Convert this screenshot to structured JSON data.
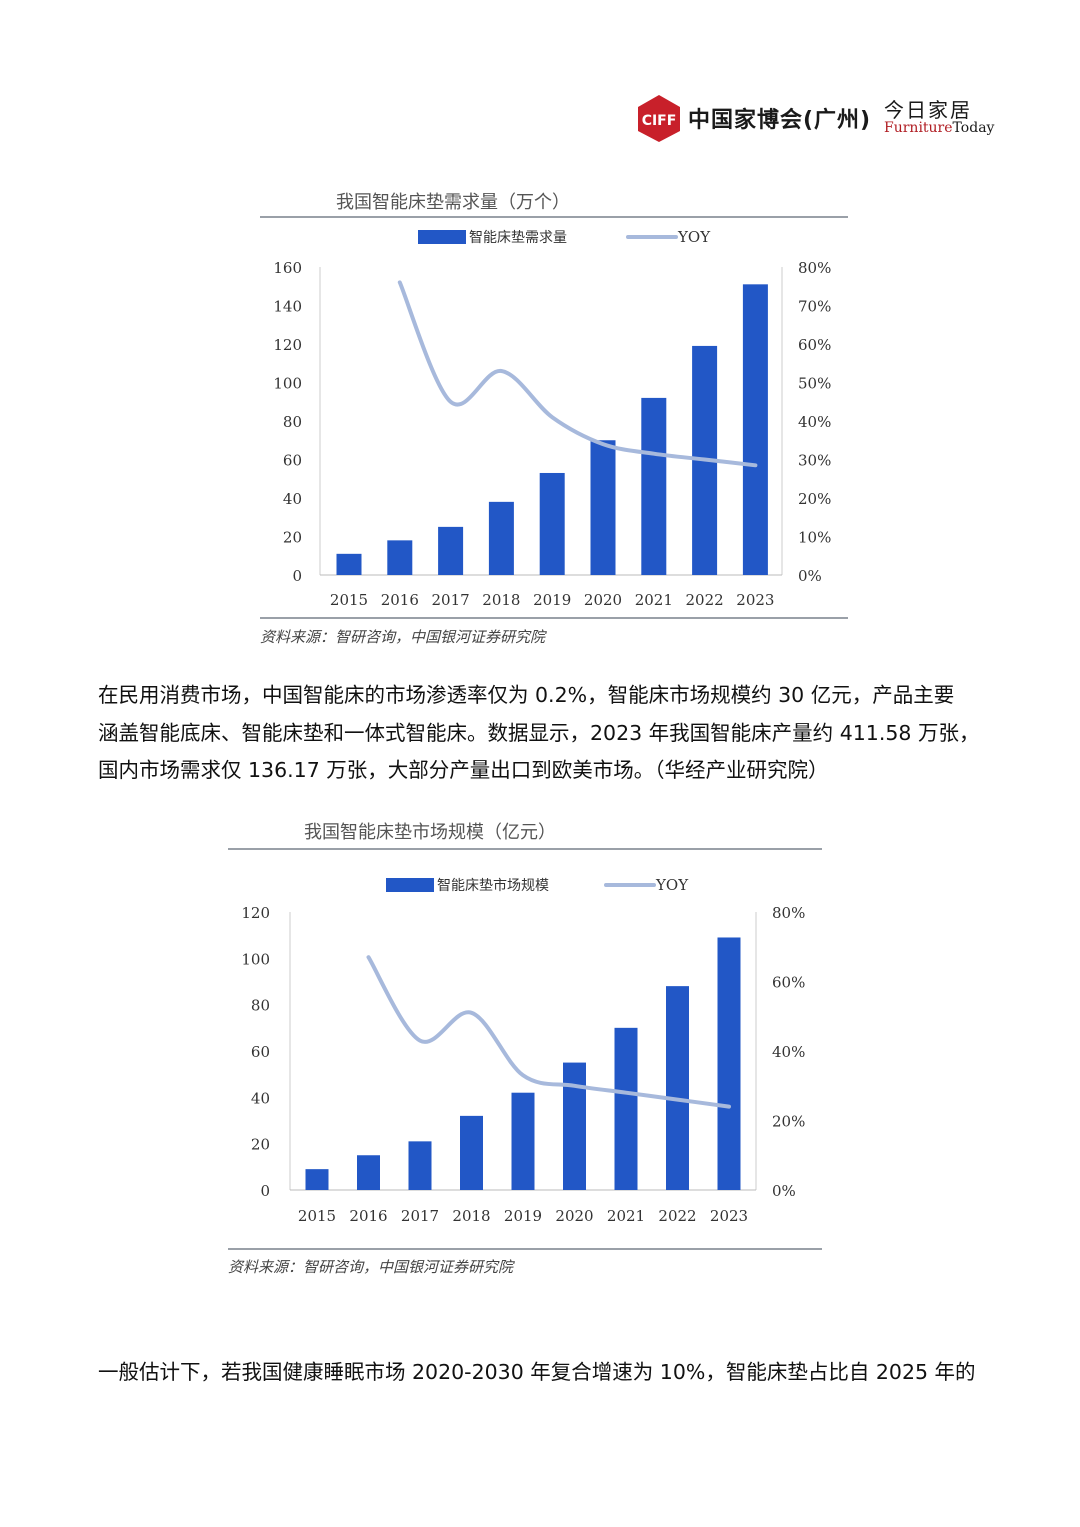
{
  "header": {
    "ciff_logo_text": "CIFF",
    "ciff_name": "中国家博会(广州)",
    "today_cn": "今日家居",
    "today_en_a": "Furniture",
    "today_en_b": "Today"
  },
  "colors": {
    "bar": "#2257c6",
    "line": "#a7b9dc",
    "rule": "#9aa0a8",
    "axis_text": "#333333"
  },
  "chart_data": [
    {
      "type": "bar",
      "title": "我国智能床垫需求量（万个）",
      "categories": [
        "2015",
        "2016",
        "2017",
        "2018",
        "2019",
        "2020",
        "2021",
        "2022",
        "2023"
      ],
      "series": [
        {
          "name": "智能床垫需求量",
          "type": "bar",
          "axis": "left",
          "values": [
            11,
            18,
            25,
            38,
            53,
            70,
            92,
            119,
            151
          ]
        },
        {
          "name": "YOY",
          "type": "line",
          "axis": "right",
          "values": [
            null,
            76,
            45,
            53,
            41,
            34,
            31.5,
            30,
            28.5
          ]
        }
      ],
      "y_left": {
        "min": 0,
        "max": 160,
        "ticks": [
          "0",
          "20",
          "40",
          "60",
          "80",
          "100",
          "120",
          "140",
          "160"
        ]
      },
      "y_right": {
        "min": 0,
        "max": 80,
        "ticks": [
          "0%",
          "10%",
          "20%",
          "30%",
          "40%",
          "50%",
          "60%",
          "70%",
          "80%"
        ]
      },
      "legend": "top",
      "source": "资料来源：智研咨询，中国银河证券研究院"
    },
    {
      "type": "bar",
      "title": "我国智能床垫市场规模（亿元）",
      "categories": [
        "2015",
        "2016",
        "2017",
        "2018",
        "2019",
        "2020",
        "2021",
        "2022",
        "2023"
      ],
      "series": [
        {
          "name": "智能床垫市场规模",
          "type": "bar",
          "axis": "left",
          "values": [
            9,
            15,
            21,
            32,
            42,
            55,
            70,
            88,
            109
          ]
        },
        {
          "name": "YOY",
          "type": "line",
          "axis": "right",
          "values": [
            null,
            67,
            43,
            51,
            33,
            30,
            28,
            26,
            24
          ]
        }
      ],
      "y_left": {
        "min": 0,
        "max": 120,
        "ticks": [
          "0",
          "20",
          "40",
          "60",
          "80",
          "100",
          "120"
        ]
      },
      "y_right": {
        "min": 0,
        "max": 80,
        "ticks": [
          "0%",
          "20%",
          "40%",
          "60%",
          "80%"
        ]
      },
      "legend": "top",
      "source": "资料来源：智研咨询，中国银河证券研究院"
    }
  ],
  "body": {
    "para1_lines": [
      "在民用消费市场，中国智能床的市场渗透率仅为 0.2%，智能床市场规模约 30 亿元，产品主要",
      "涵盖智能底床、智能床垫和一体式智能床。数据显示，2023 年我国智能床产量约 411.58 万张，",
      "国内市场需求仅 136.17 万张，大部分产量出口到欧美市场。（华经产业研究院）"
    ],
    "para2": "一般估计下，若我国健康睡眠市场 2020-2030 年复合增速为 10%，智能床垫占比自 2025 年的"
  }
}
